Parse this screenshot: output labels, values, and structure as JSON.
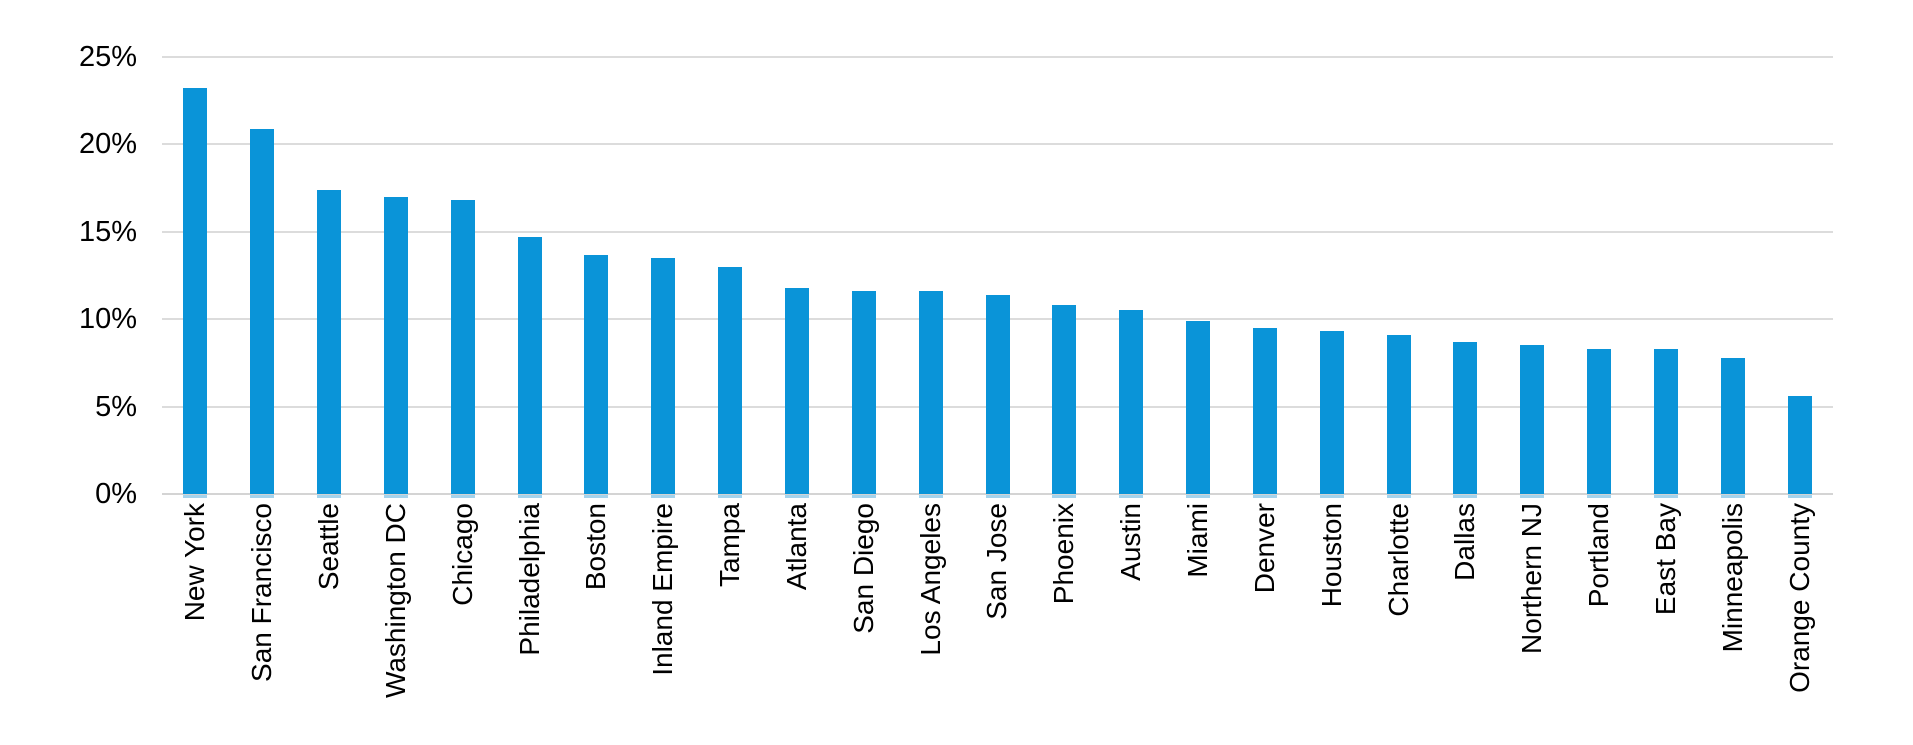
{
  "chart_data": {
    "type": "bar",
    "title": "",
    "xlabel": "",
    "ylabel": "",
    "unit": "%",
    "grid": true,
    "legend": false,
    "ylim": [
      0,
      25
    ],
    "y_ticks": [
      25,
      20,
      15,
      10,
      5,
      0
    ],
    "y_tick_labels": [
      "25%",
      "20%",
      "15%",
      "10%",
      "5%",
      "0%"
    ],
    "categories": [
      "New York",
      "San Francisco",
      "Seattle",
      "Washington DC",
      "Chicago",
      "Philadelphia",
      "Boston",
      "Inland Empire",
      "Tampa",
      "Atlanta",
      "San Diego",
      "Los Angeles",
      "San Jose",
      "Phoenix",
      "Austin",
      "Miami",
      "Denver",
      "Houston",
      "Charlotte",
      "Dallas",
      "Northern NJ",
      "Portland",
      "East Bay",
      "Minneapolis",
      "Orange County"
    ],
    "values": [
      23.2,
      20.9,
      17.4,
      17.0,
      16.8,
      14.7,
      13.7,
      13.5,
      13.0,
      11.8,
      11.6,
      11.6,
      11.4,
      10.8,
      10.5,
      9.9,
      9.5,
      9.3,
      9.1,
      8.7,
      8.5,
      8.3,
      8.3,
      7.8,
      5.6
    ],
    "colors": {
      "bar": "#0a94d8",
      "bar_stub": "#a5d3ec",
      "gridline": "#dcdcdc",
      "baseline": "#d4d4d4",
      "text": "#000000"
    }
  }
}
